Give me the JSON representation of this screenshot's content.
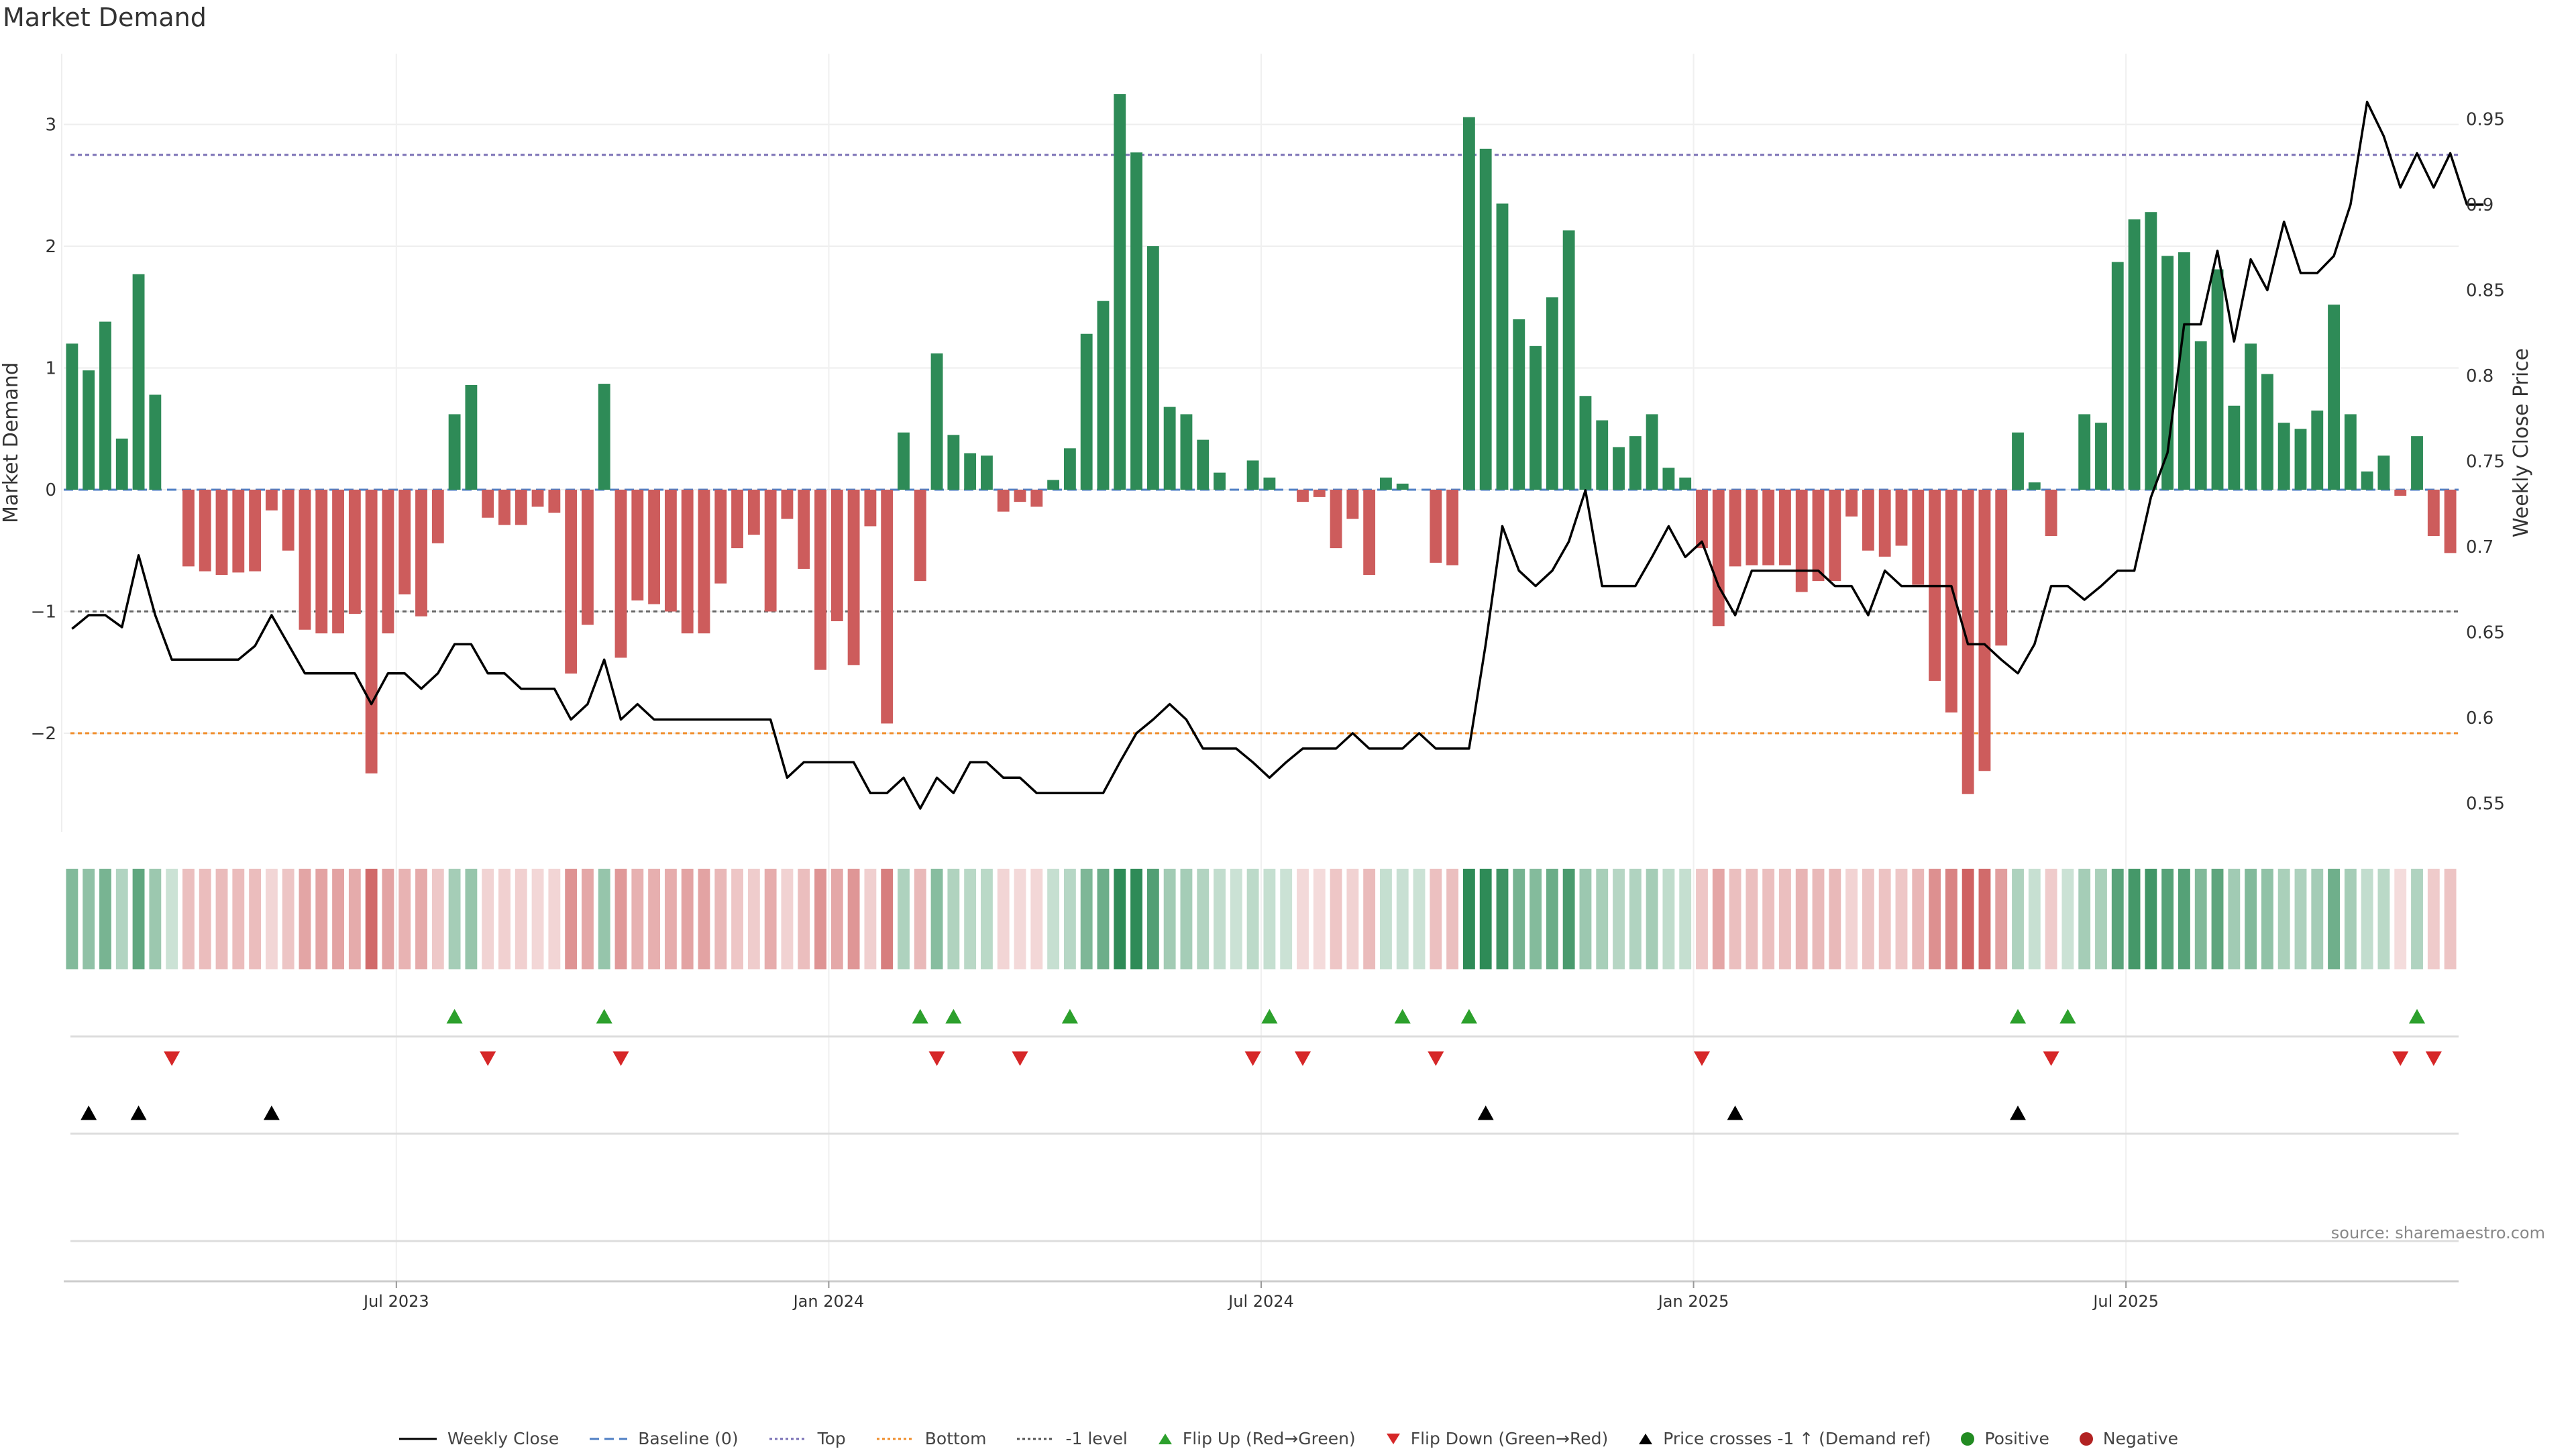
{
  "chart_data": {
    "type": "bar",
    "title": "Market Demand",
    "ylabel": "Market Demand",
    "y2label": "Weekly Close Price",
    "ylim": [
      -2.8,
      3.6
    ],
    "y2lim": [
      0.535,
      0.975
    ],
    "yticks": [
      -2,
      -1,
      0,
      1,
      2,
      3
    ],
    "ytick_labels": [
      "−2",
      "−1",
      "0",
      "1",
      "2",
      "3"
    ],
    "y2ticks": [
      0.55,
      0.6,
      0.65,
      0.7,
      0.75,
      0.8,
      0.85,
      0.9,
      0.95
    ],
    "y2tick_labels": [
      "0.55",
      "0.6",
      "0.65",
      "0.7",
      "0.75",
      "0.8",
      "0.85",
      "0.9",
      "0.95"
    ],
    "x_labels": [
      {
        "label": "Jul 2023",
        "week": 20
      },
      {
        "label": "Jan 2024",
        "week": 46
      },
      {
        "label": "Jul 2024",
        "week": 72
      },
      {
        "label": "Jan 2025",
        "week": 98
      },
      {
        "label": "Jul 2025",
        "week": 124
      }
    ],
    "levels": {
      "top": 2.75,
      "baseline": 0,
      "minus_one": -1,
      "bottom": -2
    },
    "colors": {
      "positive": "#2e8b57",
      "negative": "#cd5c5c",
      "line": "#000000",
      "top": "#7a70b5",
      "bottom": "#f08c28",
      "baseline": "#4f7fc4",
      "flip_up": "#2ca02c",
      "flip_down": "#d62728",
      "cross": "#000000"
    },
    "demand": [
      1.2,
      0.98,
      1.38,
      0.42,
      1.77,
      0.78,
      0,
      -0.63,
      -0.67,
      -0.7,
      -0.68,
      -0.67,
      -0.17,
      -0.5,
      -1.15,
      -1.18,
      -1.18,
      -1.02,
      -2.33,
      -1.18,
      -0.86,
      -1.04,
      -0.44,
      0.62,
      0.86,
      -0.23,
      -0.29,
      -0.29,
      -0.14,
      -0.19,
      -1.51,
      -1.11,
      0.87,
      -1.38,
      -0.91,
      -0.94,
      -1.0,
      -1.18,
      -1.18,
      -0.77,
      -0.48,
      -0.37,
      -1.0,
      -0.24,
      -0.65,
      -1.48,
      -1.08,
      -1.44,
      -0.3,
      -1.92,
      0.47,
      -0.75,
      1.12,
      0.45,
      0.3,
      0.28,
      -0.18,
      -0.1,
      -0.14,
      0.08,
      0.34,
      1.28,
      1.55,
      3.25,
      2.77,
      2.0,
      0.68,
      0.62,
      0.41,
      0.14,
      0,
      0.24,
      0.1,
      0,
      -0.1,
      -0.06,
      -0.48,
      -0.24,
      -0.7,
      0.1,
      0.05,
      0,
      -0.6,
      -0.62,
      3.06,
      2.8,
      2.35,
      1.4,
      1.18,
      1.58,
      2.13,
      0.77,
      0.57,
      0.35,
      0.44,
      0.62,
      0.18,
      0.1,
      -0.48,
      -1.12,
      -0.63,
      -0.62,
      -0.62,
      -0.62,
      -0.84,
      -0.75,
      -0.75,
      -0.22,
      -0.5,
      -0.55,
      -0.46,
      -0.78,
      -1.57,
      -1.83,
      -2.5,
      -2.31,
      -1.28,
      0.47,
      0.06,
      -0.38,
      0,
      0.62,
      0.55,
      1.87,
      2.22,
      2.28,
      1.92,
      1.95,
      1.22,
      1.81,
      0.69,
      1.2,
      0.95,
      0.55,
      0.5,
      0.65,
      1.52,
      0.62,
      0.15,
      0.28,
      -0.05,
      0.44,
      -0.38,
      -0.52
    ],
    "close": [
      0.652,
      0.66,
      0.66,
      0.653,
      0.695,
      0.66,
      0.634,
      0.634,
      0.634,
      0.634,
      0.634,
      0.642,
      0.66,
      0.643,
      0.626,
      0.626,
      0.626,
      0.626,
      0.608,
      0.626,
      0.626,
      0.617,
      0.626,
      0.643,
      0.643,
      0.626,
      0.626,
      0.617,
      0.617,
      0.617,
      0.599,
      0.608,
      0.634,
      0.599,
      0.608,
      0.599,
      0.599,
      0.599,
      0.599,
      0.599,
      0.599,
      0.599,
      0.599,
      0.565,
      0.574,
      0.574,
      0.574,
      0.574,
      0.556,
      0.556,
      0.565,
      0.547,
      0.565,
      0.556,
      0.574,
      0.574,
      0.565,
      0.565,
      0.556,
      0.556,
      0.556,
      0.556,
      0.556,
      0.574,
      0.591,
      0.599,
      0.608,
      0.599,
      0.582,
      0.582,
      0.582,
      0.574,
      0.565,
      0.574,
      0.582,
      0.582,
      0.582,
      0.591,
      0.582,
      0.582,
      0.582,
      0.591,
      0.582,
      0.582,
      0.582,
      0.643,
      0.712,
      0.686,
      0.677,
      0.686,
      0.703,
      0.733,
      0.677,
      0.677,
      0.677,
      0.694,
      0.712,
      0.694,
      0.703,
      0.677,
      0.66,
      0.686,
      0.686,
      0.686,
      0.686,
      0.686,
      0.677,
      0.677,
      0.66,
      0.686,
      0.677,
      0.677,
      0.677,
      0.677,
      0.643,
      0.643,
      0.634,
      0.626,
      0.643,
      0.677,
      0.677,
      0.669,
      0.677,
      0.686,
      0.686,
      0.729,
      0.755,
      0.83,
      0.83,
      0.873,
      0.82,
      0.868,
      0.85,
      0.89,
      0.86,
      0.86,
      0.87,
      0.9,
      0.96,
      0.94,
      0.91,
      0.93,
      0.91,
      0.93,
      0.9,
      0.9
    ],
    "heat_values": [
      1.2,
      0.98,
      1.38,
      0.42,
      1.77,
      0.78,
      0,
      -0.63,
      -0.67,
      -0.7,
      -0.68,
      -0.67,
      -0.17,
      -0.5,
      -1.15,
      -1.18,
      -1.18,
      -1.02,
      -2.33,
      -1.18,
      -0.86,
      -1.04,
      -0.44,
      0.62,
      0.86,
      -0.23,
      -0.29,
      -0.29,
      -0.14,
      -0.19,
      -1.51,
      -1.11,
      0.87,
      -1.38,
      -0.91,
      -0.94,
      -1.0,
      -1.18,
      -1.18,
      -0.77,
      -0.48,
      -0.37,
      -1.0,
      -0.24,
      -0.65,
      -1.48,
      -1.08,
      -1.44,
      -0.3,
      -1.92,
      0.47,
      -0.75,
      1.12,
      0.45,
      0.3,
      0.28,
      -0.18,
      -0.1,
      -0.14,
      0.08,
      0.34,
      1.28,
      1.55,
      3.25,
      2.77,
      2.0,
      0.68,
      0.62,
      0.41,
      0.14,
      0,
      0.24,
      0.1,
      0,
      -0.1,
      -0.06,
      -0.48,
      -0.24,
      -0.7,
      0.1,
      0.05,
      0,
      -0.6,
      -0.62,
      3.06,
      2.8,
      2.35,
      1.4,
      1.18,
      1.58,
      2.13,
      0.77,
      0.57,
      0.35,
      0.44,
      0.62,
      0.18,
      0.1,
      -0.48,
      -1.12,
      -0.63,
      -0.62,
      -0.62,
      -0.62,
      -0.84,
      -0.75,
      -0.75,
      -0.22,
      -0.5,
      -0.55,
      -0.46,
      -0.78,
      -1.57,
      -1.83,
      -2.5,
      -2.31,
      -1.28,
      0.47,
      0.06,
      -0.38,
      0,
      0.62,
      0.55,
      1.87,
      2.22,
      2.28,
      1.92,
      1.95,
      1.22,
      1.81,
      0.69,
      1.2,
      0.95,
      0.55,
      0.5,
      0.65,
      1.52,
      0.62,
      0.15,
      0.28,
      -0.05,
      0.44,
      -0.38,
      -0.52
    ],
    "flip_up_weeks": [
      23,
      32,
      51,
      53,
      60,
      72,
      80,
      84,
      117,
      120,
      141
    ],
    "flip_down_weeks": [
      6,
      25,
      33,
      52,
      57,
      71,
      74,
      82,
      98,
      119,
      140,
      142
    ],
    "price_cross_weeks": [
      1,
      4,
      12,
      85,
      100,
      117
    ],
    "source": "source: sharemaestro.com"
  },
  "legend": [
    {
      "label": "Weekly Close",
      "icon": "line-icon"
    },
    {
      "label": "Baseline (0)",
      "icon": "dashed-line-icon"
    },
    {
      "label": "Top",
      "icon": "dotted-line-icon"
    },
    {
      "label": "Bottom",
      "icon": "dotted-line-icon"
    },
    {
      "label": "-1 level",
      "icon": "dotted-line-icon"
    },
    {
      "label": "Flip Up (Red→Green)",
      "icon": "triangle-up-icon"
    },
    {
      "label": "Flip Down (Green→Red)",
      "icon": "triangle-down-icon"
    },
    {
      "label": "Price crosses -1 ↑ (Demand ref)",
      "icon": "triangle-up-icon"
    },
    {
      "label": "Positive",
      "icon": "circle-icon"
    },
    {
      "label": "Negative",
      "icon": "circle-icon"
    }
  ]
}
